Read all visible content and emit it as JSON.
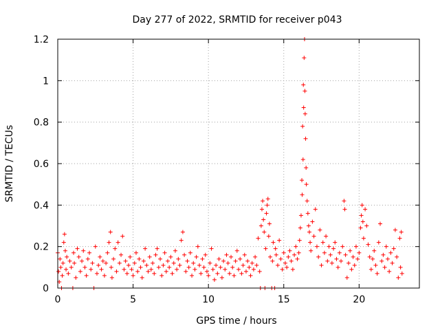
{
  "chart_data": {
    "type": "scatter",
    "title": "Day 277 of 2022, SRMTID for receiver p043",
    "xlabel": "GPS time / hours",
    "ylabel": "SRMTID / TECUs",
    "xlim": [
      0,
      24
    ],
    "ylim": [
      0,
      1.2
    ],
    "xticks": [
      0,
      5,
      10,
      15,
      20
    ],
    "xtick_labels": [
      "0",
      "5",
      "10",
      "15",
      "20"
    ],
    "yticks": [
      0,
      0.2,
      0.4,
      0.6,
      0.8,
      1.0,
      1.2
    ],
    "ytick_labels": [
      "0",
      "0.2",
      "0.4",
      "0.6",
      "0.8",
      "1",
      "1.2"
    ],
    "grid": true,
    "marker": "+",
    "color": "#ff0000",
    "series": [
      {
        "name": "p043",
        "points": [
          [
            0.0,
            0.17
          ],
          [
            0.05,
            0.08
          ],
          [
            0.1,
            0.03
          ],
          [
            0.15,
            0.14
          ],
          [
            0.2,
            0.1
          ],
          [
            0.25,
            0.0
          ],
          [
            0.3,
            0.06
          ],
          [
            0.35,
            0.12
          ],
          [
            0.4,
            0.22
          ],
          [
            0.45,
            0.26
          ],
          [
            0.5,
            0.18
          ],
          [
            0.55,
            0.09
          ],
          [
            0.6,
            0.15
          ],
          [
            0.7,
            0.07
          ],
          [
            0.8,
            0.13
          ],
          [
            0.9,
            0.1
          ],
          [
            1.0,
            0.0
          ],
          [
            1.05,
            0.17
          ],
          [
            1.1,
            0.12
          ],
          [
            1.2,
            0.05
          ],
          [
            1.3,
            0.19
          ],
          [
            1.4,
            0.15
          ],
          [
            1.5,
            0.08
          ],
          [
            1.6,
            0.13
          ],
          [
            1.7,
            0.18
          ],
          [
            1.8,
            0.1
          ],
          [
            1.9,
            0.06
          ],
          [
            2.0,
            0.14
          ],
          [
            2.1,
            0.17
          ],
          [
            2.2,
            0.09
          ],
          [
            2.3,
            0.12
          ],
          [
            2.4,
            0.0
          ],
          [
            2.5,
            0.2
          ],
          [
            2.6,
            0.07
          ],
          [
            2.7,
            0.11
          ],
          [
            2.8,
            0.15
          ],
          [
            2.9,
            0.09
          ],
          [
            3.0,
            0.13
          ],
          [
            3.1,
            0.06
          ],
          [
            3.2,
            0.12
          ],
          [
            3.3,
            0.17
          ],
          [
            3.4,
            0.22
          ],
          [
            3.5,
            0.27
          ],
          [
            3.55,
            0.1
          ],
          [
            3.6,
            0.05
          ],
          [
            3.7,
            0.14
          ],
          [
            3.8,
            0.19
          ],
          [
            3.9,
            0.08
          ],
          [
            4.0,
            0.22
          ],
          [
            4.1,
            0.12
          ],
          [
            4.2,
            0.16
          ],
          [
            4.3,
            0.25
          ],
          [
            4.4,
            0.09
          ],
          [
            4.5,
            0.13
          ],
          [
            4.6,
            0.07
          ],
          [
            4.7,
            0.11
          ],
          [
            4.8,
            0.15
          ],
          [
            4.9,
            0.09
          ],
          [
            5.0,
            0.06
          ],
          [
            5.1,
            0.12
          ],
          [
            5.2,
            0.17
          ],
          [
            5.3,
            0.08
          ],
          [
            5.4,
            0.14
          ],
          [
            5.5,
            0.1
          ],
          [
            5.6,
            0.05
          ],
          [
            5.7,
            0.13
          ],
          [
            5.8,
            0.19
          ],
          [
            5.9,
            0.11
          ],
          [
            6.0,
            0.08
          ],
          [
            6.1,
            0.15
          ],
          [
            6.2,
            0.09
          ],
          [
            6.3,
            0.12
          ],
          [
            6.4,
            0.07
          ],
          [
            6.5,
            0.16
          ],
          [
            6.6,
            0.19
          ],
          [
            6.7,
            0.1
          ],
          [
            6.8,
            0.14
          ],
          [
            6.9,
            0.06
          ],
          [
            7.0,
            0.11
          ],
          [
            7.1,
            0.17
          ],
          [
            7.2,
            0.08
          ],
          [
            7.3,
            0.13
          ],
          [
            7.4,
            0.1
          ],
          [
            7.5,
            0.15
          ],
          [
            7.6,
            0.07
          ],
          [
            7.7,
            0.12
          ],
          [
            7.8,
            0.18
          ],
          [
            7.9,
            0.09
          ],
          [
            8.0,
            0.14
          ],
          [
            8.1,
            0.11
          ],
          [
            8.2,
            0.23
          ],
          [
            8.3,
            0.27
          ],
          [
            8.4,
            0.16
          ],
          [
            8.5,
            0.08
          ],
          [
            8.6,
            0.13
          ],
          [
            8.7,
            0.1
          ],
          [
            8.8,
            0.17
          ],
          [
            8.9,
            0.06
          ],
          [
            9.0,
            0.12
          ],
          [
            9.1,
            0.09
          ],
          [
            9.2,
            0.15
          ],
          [
            9.3,
            0.2
          ],
          [
            9.4,
            0.11
          ],
          [
            9.5,
            0.07
          ],
          [
            9.6,
            0.14
          ],
          [
            9.7,
            0.1
          ],
          [
            9.8,
            0.16
          ],
          [
            9.9,
            0.08
          ],
          [
            10.0,
            0.06
          ],
          [
            10.1,
            0.12
          ],
          [
            10.2,
            0.19
          ],
          [
            10.3,
            0.09
          ],
          [
            10.4,
            0.04
          ],
          [
            10.5,
            0.11
          ],
          [
            10.6,
            0.07
          ],
          [
            10.7,
            0.14
          ],
          [
            10.8,
            0.1
          ],
          [
            10.9,
            0.05
          ],
          [
            11.0,
            0.13
          ],
          [
            11.1,
            0.09
          ],
          [
            11.2,
            0.16
          ],
          [
            11.3,
            0.12
          ],
          [
            11.4,
            0.07
          ],
          [
            11.5,
            0.15
          ],
          [
            11.6,
            0.1
          ],
          [
            11.7,
            0.06
          ],
          [
            11.8,
            0.13
          ],
          [
            11.9,
            0.18
          ],
          [
            12.0,
            0.09
          ],
          [
            12.1,
            0.14
          ],
          [
            12.2,
            0.07
          ],
          [
            12.3,
            0.11
          ],
          [
            12.4,
            0.16
          ],
          [
            12.5,
            0.08
          ],
          [
            12.6,
            0.13
          ],
          [
            12.7,
            0.1
          ],
          [
            12.8,
            0.06
          ],
          [
            12.9,
            0.12
          ],
          [
            13.0,
            0.09
          ],
          [
            13.1,
            0.15
          ],
          [
            13.2,
            0.11
          ],
          [
            13.3,
            0.24
          ],
          [
            13.4,
            0.08
          ],
          [
            13.45,
            0.0
          ],
          [
            13.5,
            0.3
          ],
          [
            13.55,
            0.38
          ],
          [
            13.6,
            0.42
          ],
          [
            13.65,
            0.33
          ],
          [
            13.7,
            0.27
          ],
          [
            13.75,
            0.0
          ],
          [
            13.8,
            0.19
          ],
          [
            13.85,
            0.36
          ],
          [
            13.9,
            0.4
          ],
          [
            13.95,
            0.43
          ],
          [
            14.0,
            0.25
          ],
          [
            14.05,
            0.31
          ],
          [
            14.1,
            0.15
          ],
          [
            14.2,
            0.0
          ],
          [
            14.25,
            0.13
          ],
          [
            14.3,
            0.22
          ],
          [
            14.4,
            0.0
          ],
          [
            14.45,
            0.19
          ],
          [
            14.5,
            0.16
          ],
          [
            14.6,
            0.11
          ],
          [
            14.7,
            0.23
          ],
          [
            14.8,
            0.14
          ],
          [
            14.9,
            0.09
          ],
          [
            15.0,
            0.17
          ],
          [
            15.1,
            0.12
          ],
          [
            15.2,
            0.1
          ],
          [
            15.3,
            0.15
          ],
          [
            15.4,
            0.18
          ],
          [
            15.5,
            0.13
          ],
          [
            15.6,
            0.09
          ],
          [
            15.7,
            0.16
          ],
          [
            15.8,
            0.2
          ],
          [
            15.9,
            0.14
          ],
          [
            16.0,
            0.17
          ],
          [
            16.05,
            0.23
          ],
          [
            16.1,
            0.29
          ],
          [
            16.15,
            0.35
          ],
          [
            16.2,
            0.52
          ],
          [
            16.22,
            0.45
          ],
          [
            16.25,
            0.78
          ],
          [
            16.28,
            0.62
          ],
          [
            16.3,
            0.98
          ],
          [
            16.32,
            0.87
          ],
          [
            16.35,
            1.11
          ],
          [
            16.38,
            1.2
          ],
          [
            16.4,
            0.95
          ],
          [
            16.42,
            0.84
          ],
          [
            16.45,
            0.72
          ],
          [
            16.48,
            0.58
          ],
          [
            16.5,
            0.5
          ],
          [
            16.55,
            0.42
          ],
          [
            16.6,
            0.36
          ],
          [
            16.65,
            0.3
          ],
          [
            16.7,
            0.27
          ],
          [
            16.75,
            0.22
          ],
          [
            16.8,
            0.18
          ],
          [
            16.9,
            0.32
          ],
          [
            17.0,
            0.25
          ],
          [
            17.1,
            0.38
          ],
          [
            17.2,
            0.2
          ],
          [
            17.3,
            0.15
          ],
          [
            17.4,
            0.28
          ],
          [
            17.5,
            0.11
          ],
          [
            17.6,
            0.22
          ],
          [
            17.7,
            0.17
          ],
          [
            17.8,
            0.25
          ],
          [
            17.9,
            0.13
          ],
          [
            18.0,
            0.2
          ],
          [
            18.1,
            0.16
          ],
          [
            18.2,
            0.12
          ],
          [
            18.3,
            0.19
          ],
          [
            18.4,
            0.22
          ],
          [
            18.5,
            0.14
          ],
          [
            18.6,
            0.1
          ],
          [
            18.7,
            0.17
          ],
          [
            18.8,
            0.13
          ],
          [
            18.9,
            0.2
          ],
          [
            19.0,
            0.42
          ],
          [
            19.05,
            0.38
          ],
          [
            19.1,
            0.16
          ],
          [
            19.2,
            0.05
          ],
          [
            19.3,
            0.12
          ],
          [
            19.4,
            0.18
          ],
          [
            19.5,
            0.09
          ],
          [
            19.6,
            0.15
          ],
          [
            19.7,
            0.11
          ],
          [
            19.8,
            0.2
          ],
          [
            19.9,
            0.14
          ],
          [
            20.0,
            0.17
          ],
          [
            20.1,
            0.29
          ],
          [
            20.15,
            0.35
          ],
          [
            20.2,
            0.4
          ],
          [
            20.25,
            0.32
          ],
          [
            20.3,
            0.24
          ],
          [
            20.4,
            0.38
          ],
          [
            20.5,
            0.3
          ],
          [
            20.6,
            0.21
          ],
          [
            20.7,
            0.15
          ],
          [
            20.8,
            0.09
          ],
          [
            20.9,
            0.14
          ],
          [
            21.0,
            0.18
          ],
          [
            21.1,
            0.11
          ],
          [
            21.2,
            0.07
          ],
          [
            21.3,
            0.22
          ],
          [
            21.4,
            0.31
          ],
          [
            21.5,
            0.13
          ],
          [
            21.6,
            0.16
          ],
          [
            21.7,
            0.1
          ],
          [
            21.8,
            0.2
          ],
          [
            21.9,
            0.14
          ],
          [
            22.0,
            0.08
          ],
          [
            22.1,
            0.17
          ],
          [
            22.2,
            0.12
          ],
          [
            22.3,
            0.19
          ],
          [
            22.4,
            0.28
          ],
          [
            22.5,
            0.15
          ],
          [
            22.6,
            0.05
          ],
          [
            22.7,
            0.24
          ],
          [
            22.75,
            0.1
          ],
          [
            22.8,
            0.27
          ],
          [
            22.85,
            0.07
          ]
        ]
      }
    ]
  }
}
